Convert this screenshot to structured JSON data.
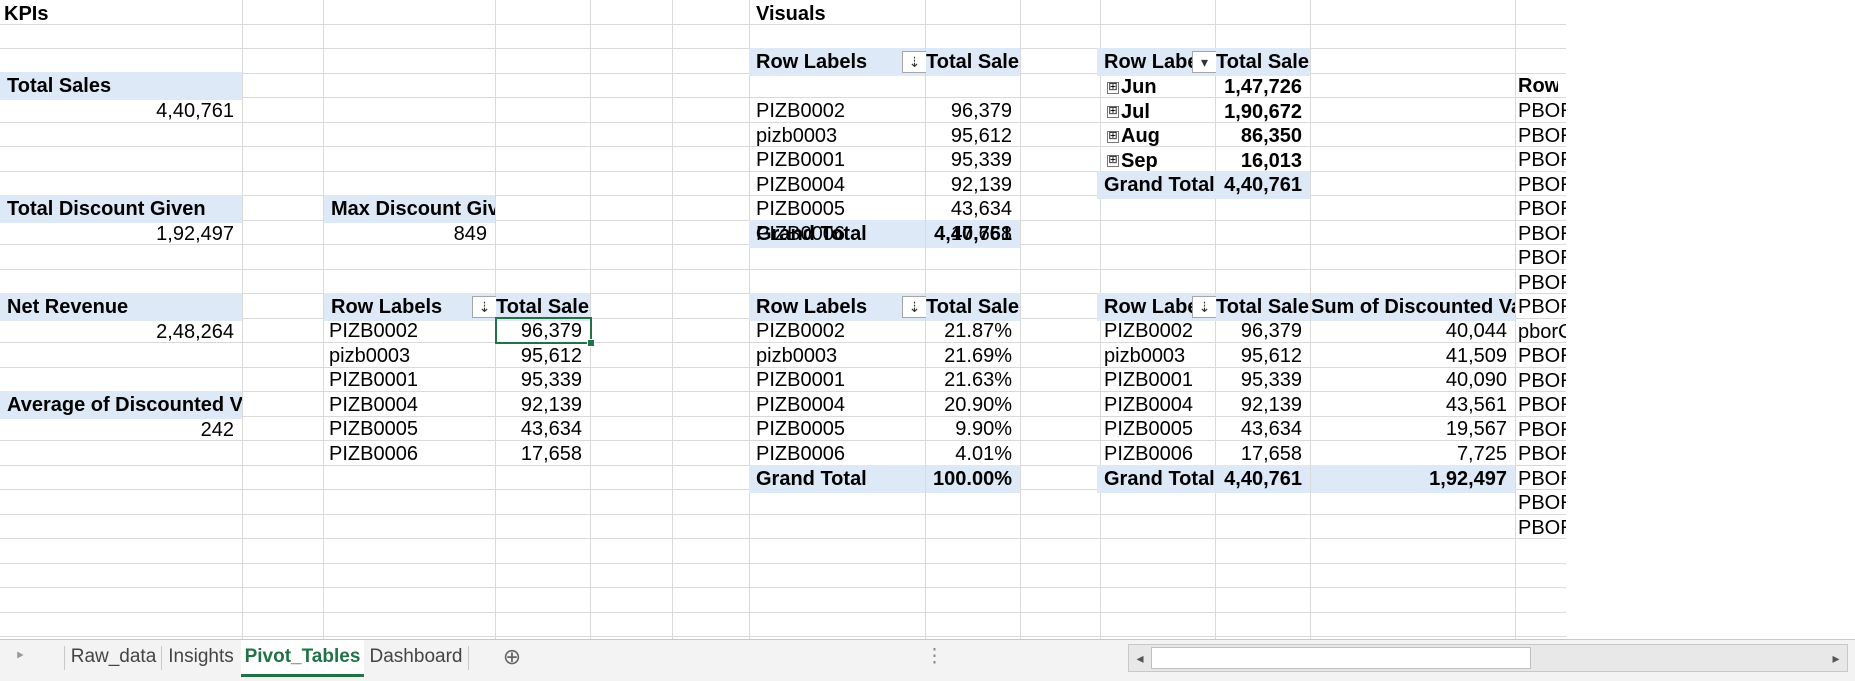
{
  "kpis": {
    "header": "KPIs",
    "total_sales_label": "Total Sales",
    "total_sales_value": "4,40,761",
    "total_discount_label": "Total Discount Given",
    "total_discount_value": "1,92,497",
    "max_discount_label": "Max Discount Given",
    "max_discount_value": "849",
    "net_revenue_label": "Net Revenue",
    "net_revenue_value": "2,48,264",
    "avg_discount_label": "Average of Discounted Value",
    "avg_discount_value": "242"
  },
  "visuals_header": "Visuals",
  "pivot_sales_kpi": {
    "row_label_header": "Row Labels",
    "value_header": "Total Sales",
    "rows": [
      {
        "label": "PIZB0002",
        "value": "96,379"
      },
      {
        "label": "pizb0003",
        "value": "95,612"
      },
      {
        "label": "PIZB0001",
        "value": "95,339"
      },
      {
        "label": "PIZB0004",
        "value": "92,139"
      },
      {
        "label": "PIZB0005",
        "value": "43,634"
      },
      {
        "label": "PIZB0006",
        "value": "17,658"
      }
    ]
  },
  "pivot_sales": {
    "row_label_header": "Row Labels",
    "value_header": "Total Sales",
    "rows": [
      {
        "label": "PIZB0002",
        "value": "96,379"
      },
      {
        "label": "pizb0003",
        "value": "95,612"
      },
      {
        "label": "PIZB0001",
        "value": "95,339"
      },
      {
        "label": "PIZB0004",
        "value": "92,139"
      },
      {
        "label": "PIZB0005",
        "value": "43,634"
      },
      {
        "label": "PIZB0006",
        "value": "17,658"
      }
    ],
    "grand_total_label": "Grand Total",
    "grand_total_value": "4,40,761"
  },
  "pivot_months": {
    "row_label_header": "Row Labels",
    "value_header": "Total Sales",
    "expander_glyph": "⊞",
    "rows": [
      {
        "label": "Jun",
        "value": "1,47,726"
      },
      {
        "label": "Jul",
        "value": "1,90,672"
      },
      {
        "label": "Aug",
        "value": "86,350"
      },
      {
        "label": "Sep",
        "value": "16,013"
      }
    ],
    "grand_total_label": "Grand Total",
    "grand_total_value": "4,40,761"
  },
  "pivot_percent": {
    "row_label_header": "Row Labels",
    "value_header": "Total Sales",
    "rows": [
      {
        "label": "PIZB0002",
        "value": "21.87%"
      },
      {
        "label": "pizb0003",
        "value": "21.69%"
      },
      {
        "label": "PIZB0001",
        "value": "21.63%"
      },
      {
        "label": "PIZB0004",
        "value": "20.90%"
      },
      {
        "label": "PIZB0005",
        "value": "9.90%"
      },
      {
        "label": "PIZB0006",
        "value": "4.01%"
      }
    ],
    "grand_total_label": "Grand Total",
    "grand_total_value": "100.00%"
  },
  "pivot_discount": {
    "row_label_header": "Row Labels",
    "sales_header": "Total Sales",
    "discount_header": "Sum of Discounted Value",
    "rows": [
      {
        "label": "PIZB0002",
        "sales": "96,379",
        "discount": "40,044"
      },
      {
        "label": "pizb0003",
        "sales": "95,612",
        "discount": "41,509"
      },
      {
        "label": "PIZB0001",
        "sales": "95,339",
        "discount": "40,090"
      },
      {
        "label": "PIZB0004",
        "sales": "92,139",
        "discount": "43,561"
      },
      {
        "label": "PIZB0005",
        "sales": "43,634",
        "discount": "19,567"
      },
      {
        "label": "PIZB0006",
        "sales": "17,658",
        "discount": "7,725"
      }
    ],
    "grand_total_label": "Grand Total",
    "grand_total_sales": "4,40,761",
    "grand_total_discount": "1,92,497"
  },
  "right_edge": {
    "header": "Row L",
    "values": [
      "PBOR",
      "PBOR",
      "PBOR",
      "PBOR",
      "PBOR",
      "PBOR",
      "PBOR",
      "PBOR",
      "PBOR",
      "pborC",
      "PBOR",
      "PBOR",
      "PBOR",
      "PBOR",
      "PBOR",
      "PBOR",
      "PBOR",
      "PBOR"
    ]
  },
  "sort_icons": {
    "sort_desc": "⇣",
    "dropdown": "▾"
  },
  "tabs": {
    "scroll_left": "‣",
    "items": [
      "Raw_data",
      "Insights",
      "Pivot_Tables",
      "Dashboard"
    ],
    "active": "Pivot_Tables",
    "add_sheet": "⊕"
  },
  "scrollbar": {
    "more": "⋮",
    "left_arrow": "◂",
    "right_arrow": "▸"
  },
  "colors": {
    "header_fill": "#dde9f6",
    "accent": "#217346",
    "gridline": "#d9d9d9"
  }
}
